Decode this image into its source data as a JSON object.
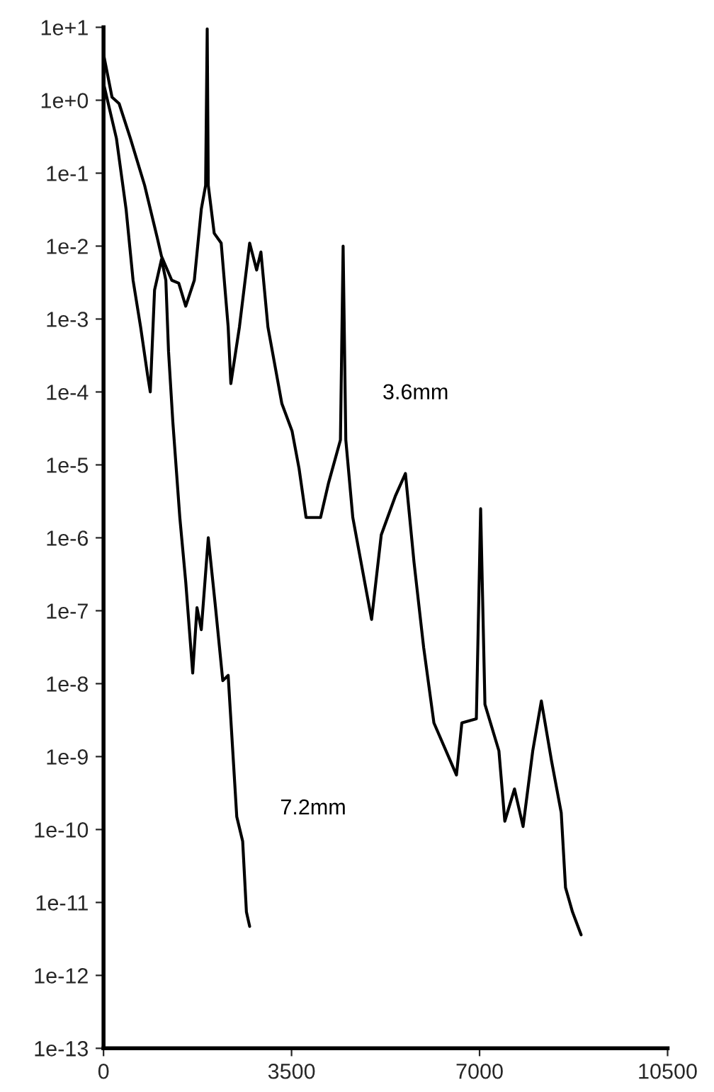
{
  "chart_data": {
    "type": "line",
    "log": "y",
    "grid": false,
    "marker": "none",
    "line_style": "solid",
    "xlim": [
      0,
      10500
    ],
    "xticks": [
      0,
      3500,
      7000,
      10500
    ],
    "ylim": [
      1e-13,
      10
    ],
    "yticks": [
      {
        "value": 1e-13,
        "label": "1e-13"
      },
      {
        "value": 1e-12,
        "label": "1e-12"
      },
      {
        "value": 1e-11,
        "label": "1e-11"
      },
      {
        "value": 1e-10,
        "label": "1e-10"
      },
      {
        "value": 1e-09,
        "label": "1e-9"
      },
      {
        "value": 1e-08,
        "label": "1e-8"
      },
      {
        "value": 1e-07,
        "label": "1e-7"
      },
      {
        "value": 1e-06,
        "label": "1e-6"
      },
      {
        "value": 1e-05,
        "label": "1e-5"
      },
      {
        "value": 0.0001,
        "label": "1e-4"
      },
      {
        "value": 0.001,
        "label": "1e-3"
      },
      {
        "value": 0.01,
        "label": "1e-2"
      },
      {
        "value": 0.1,
        "label": "1e-1"
      },
      {
        "value": 1,
        "label": "1e+0"
      },
      {
        "value": 10,
        "label": "1e+1"
      }
    ],
    "series": [
      {
        "name": "3.6mm",
        "color": "#000000",
        "x": [
          0,
          158,
          290,
          500,
          765,
          1000,
          1080,
          1270,
          1400,
          1530,
          1690,
          1820,
          1900,
          1930,
          1950,
          2060,
          2190,
          2320,
          2370,
          2530,
          2720,
          2850,
          2930,
          3060,
          3320,
          3510,
          3640,
          3770,
          4040,
          4190,
          4410,
          4460,
          4510,
          4640,
          4990,
          5170,
          5430,
          5620,
          5780,
          5960,
          6150,
          6570,
          6670,
          6940,
          7020,
          7100,
          7360,
          7470,
          7650,
          7810,
          7990,
          8150,
          8340,
          8520,
          8600,
          8730,
          8890
        ],
        "values": [
          4.3,
          1.1,
          0.9,
          0.3,
          0.068,
          0.013,
          0.0072,
          0.0034,
          0.0031,
          0.0015,
          0.0034,
          0.032,
          0.068,
          9.5,
          0.068,
          0.015,
          0.011,
          0.00078,
          0.00013,
          0.00078,
          0.011,
          0.0047,
          0.0083,
          0.00078,
          6.9e-05,
          2.9e-05,
          8.9e-06,
          1.9e-06,
          1.9e-06,
          5.7e-06,
          2.2e-05,
          0.01,
          2.2e-05,
          1.9e-06,
          7.6e-08,
          1.1e-06,
          3.7e-06,
          7.6e-06,
          4.6e-07,
          3.1e-08,
          2.9e-09,
          5.6e-10,
          2.9e-09,
          3.3e-09,
          2.5e-06,
          5.2e-09,
          1.2e-09,
          1.3e-10,
          3.6e-10,
          1.1e-10,
          1.2e-09,
          5.8e-09,
          8.7e-10,
          1.7e-10,
          1.6e-11,
          7.4e-12,
          3.6e-12
        ]
      },
      {
        "name": "7.2mm",
        "color": "#000000",
        "x": [
          0,
          240,
          420,
          550,
          690,
          820,
          870,
          950,
          1080,
          1160,
          1210,
          1290,
          1420,
          1530,
          1660,
          1740,
          1820,
          1950,
          2080,
          2220,
          2320,
          2400,
          2480,
          2590,
          2660,
          2720
        ],
        "values": [
          1.7,
          0.3,
          0.032,
          0.0034,
          0.00078,
          0.00017,
          0.0001,
          0.0025,
          0.0066,
          0.0034,
          0.00036,
          3.9e-05,
          1.9e-06,
          2.5e-07,
          1.4e-08,
          1.1e-07,
          5.5e-08,
          1e-06,
          1.2e-07,
          1.1e-08,
          1.3e-08,
          1.4e-09,
          1.5e-10,
          6.9e-11,
          7.4e-12,
          4.7e-12
        ]
      }
    ]
  }
}
